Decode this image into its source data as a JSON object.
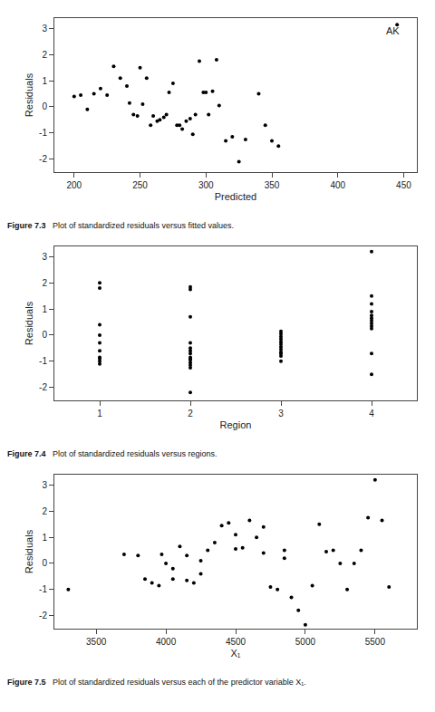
{
  "chart_data": [
    {
      "type": "scatter",
      "title": "Figure 7.3",
      "subtitle": "Plot of standardized residuals versus fitted values.",
      "x_label": "Predicted",
      "y_label": "Residuals",
      "xlim": [
        185,
        460
      ],
      "ylim": [
        -2.5,
        3.4
      ],
      "xticks": [
        200,
        250,
        300,
        350,
        400,
        450
      ],
      "yticks": [
        -2,
        -1,
        0,
        1,
        2,
        3
      ],
      "grid": false,
      "color": "black",
      "annotations": [
        {
          "text": "AK",
          "x": 448,
          "y": 3.18
        }
      ],
      "x": [
        200,
        205,
        210,
        215,
        220,
        225,
        230,
        235,
        240,
        242,
        245,
        248,
        250,
        252,
        255,
        258,
        260,
        263,
        265,
        268,
        270,
        272,
        275,
        278,
        280,
        282,
        285,
        288,
        290,
        292,
        295,
        298,
        300,
        302,
        305,
        308,
        310,
        315,
        320,
        325,
        330,
        340,
        345,
        350,
        355,
        445
      ],
      "values": [
        0.4,
        0.45,
        -0.1,
        0.5,
        0.7,
        0.45,
        1.55,
        1.1,
        0.8,
        0.15,
        -0.3,
        -0.35,
        1.5,
        0.1,
        1.1,
        -0.7,
        -0.35,
        -0.55,
        -0.5,
        -0.4,
        -0.3,
        0.55,
        0.9,
        -0.7,
        -0.7,
        -0.85,
        -0.55,
        -0.45,
        -1.05,
        -0.3,
        1.75,
        0.55,
        0.55,
        -0.3,
        0.6,
        1.8,
        0.05,
        -1.3,
        -1.15,
        -2.1,
        -1.25,
        0.5,
        -0.7,
        -1.3,
        -1.5,
        3.15
      ]
    },
    {
      "type": "scatter",
      "title": "Figure 7.4",
      "subtitle": "Plot of standardized residuals versus regions.",
      "x_label": "Region",
      "y_label": "Residuals",
      "xlim": [
        0.5,
        4.5
      ],
      "ylim": [
        -2.5,
        3.4
      ],
      "xticks": [
        1,
        2,
        3,
        4
      ],
      "yticks": [
        -2,
        -1,
        0,
        1,
        2,
        3
      ],
      "grid": false,
      "color": "black",
      "x": [
        1,
        1,
        1,
        1,
        1,
        1,
        1,
        1,
        1,
        1,
        2,
        2,
        2,
        2,
        2,
        2,
        2,
        2,
        2,
        2,
        2,
        2,
        2,
        2,
        3,
        3,
        3,
        3,
        3,
        3,
        3,
        3,
        3,
        3,
        3,
        3,
        4,
        4,
        4,
        4,
        4,
        4,
        4,
        4,
        4,
        4,
        4,
        4
      ],
      "values": [
        2.0,
        1.8,
        0.4,
        0.0,
        -0.3,
        -0.6,
        -0.85,
        -0.9,
        -1.0,
        -1.1,
        1.85,
        1.75,
        0.7,
        -0.3,
        -0.5,
        -0.6,
        -0.7,
        -0.85,
        -0.9,
        -0.95,
        -1.05,
        -1.15,
        -1.25,
        -2.2,
        0.15,
        0.05,
        -0.05,
        -0.15,
        -0.25,
        -0.35,
        -0.45,
        -0.55,
        -0.65,
        -0.7,
        -0.8,
        -1.0,
        3.2,
        1.5,
        1.2,
        0.9,
        0.75,
        0.65,
        0.55,
        0.45,
        0.35,
        0.25,
        -0.7,
        -1.5
      ]
    },
    {
      "type": "scatter",
      "title": "Figure 7.5",
      "subtitle": "Plot of standardized residuals versus each of the predictor variable X₁.",
      "x_label": "X₁",
      "y_label": "Residuals",
      "xlim": [
        3200,
        5800
      ],
      "ylim": [
        -2.5,
        3.4
      ],
      "xticks": [
        3500,
        4000,
        4500,
        5000,
        5500
      ],
      "yticks": [
        -2,
        -1,
        0,
        1,
        2,
        3
      ],
      "grid": false,
      "color": "black",
      "x": [
        3300,
        3700,
        3800,
        3850,
        3900,
        3950,
        3970,
        4000,
        4050,
        4050,
        4100,
        4150,
        4150,
        4200,
        4250,
        4250,
        4300,
        4350,
        4400,
        4450,
        4500,
        4500,
        4550,
        4600,
        4650,
        4700,
        4700,
        4750,
        4800,
        4850,
        4850,
        4900,
        4950,
        5000,
        5050,
        5100,
        5150,
        5200,
        5250,
        5300,
        5350,
        5400,
        5450,
        5500,
        5550,
        5600
      ],
      "values": [
        -1.0,
        0.35,
        0.3,
        -0.6,
        -0.75,
        -0.85,
        0.35,
        0.0,
        -0.2,
        -0.6,
        0.65,
        0.3,
        -0.65,
        -0.75,
        0.1,
        -0.4,
        0.5,
        0.8,
        1.45,
        1.55,
        1.1,
        0.55,
        0.6,
        1.65,
        1.0,
        1.4,
        0.4,
        -0.9,
        -1.0,
        0.5,
        0.2,
        -1.3,
        -1.8,
        -2.35,
        -0.85,
        1.5,
        0.45,
        0.5,
        0.0,
        -1.0,
        0.0,
        0.5,
        1.75,
        3.2,
        1.65,
        -0.9
      ]
    }
  ]
}
